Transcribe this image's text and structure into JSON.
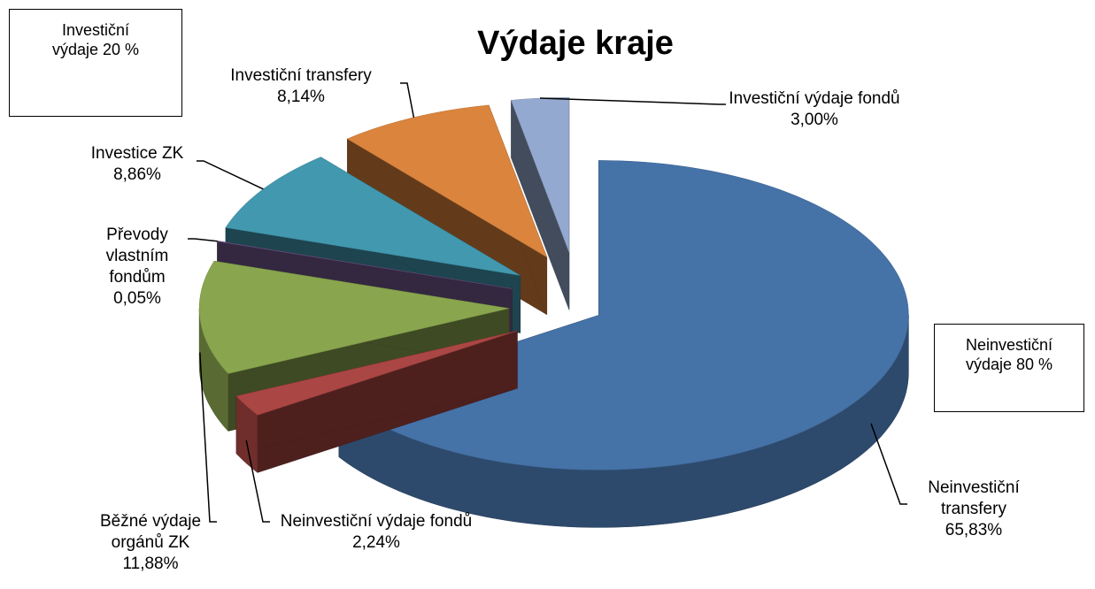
{
  "chart_data": {
    "type": "pie",
    "title": "Výdaje kraje",
    "categories": [
      "Neinvestiční transfery",
      "Neinvestiční výdaje fondů",
      "Běžné výdaje orgánů ZK",
      "Převody vlastním fondům",
      "Investice ZK",
      "Investiční transfery",
      "Investiční výdaje fondů"
    ],
    "values": [
      65.83,
      2.24,
      11.88,
      0.05,
      8.86,
      8.14,
      3.0
    ],
    "value_labels": [
      "65,83%",
      "2,24%",
      "11,88%",
      "0,05%",
      "8,86%",
      "8,14%",
      "3,00%"
    ],
    "colors": [
      "#4572a7",
      "#aa4643",
      "#89a54e",
      "#71588f",
      "#4198af",
      "#db843d",
      "#93a9cf"
    ],
    "annotations": [
      "Investiční výdaje 20 %",
      "Neinvestiční výdaje 80 %"
    ]
  }
}
